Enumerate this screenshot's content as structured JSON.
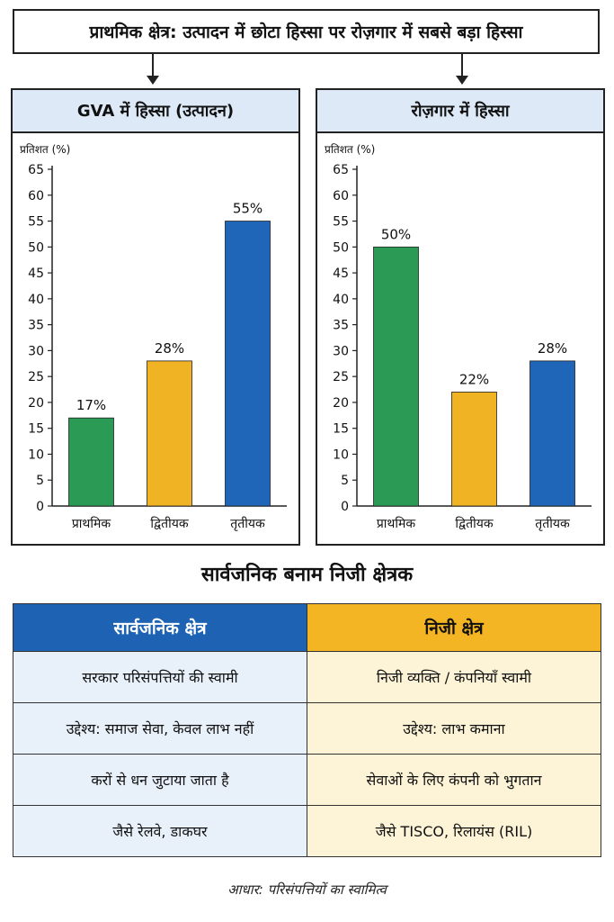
{
  "title": "प्राथमिक क्षेत्र: उत्पादन में छोटा हिस्सा पर रोज़गार में सबसे बड़ा हिस्सा",
  "colors": {
    "primary": "#2a9a55",
    "secondary": "#f0b323",
    "tertiary": "#1f66b8"
  },
  "chart_data": [
    {
      "type": "bar",
      "title": "GVA में हिस्सा (उत्पादन)",
      "ylabel": "प्रतिशत (%)",
      "xlabel": "",
      "categories": [
        "प्राथमिक",
        "द्वितीयक",
        "तृतीयक"
      ],
      "values": [
        17,
        28,
        55
      ],
      "data_labels": [
        "17%",
        "28%",
        "55%"
      ],
      "ylim": [
        0,
        65
      ],
      "yticks": [
        0,
        5,
        10,
        15,
        20,
        25,
        30,
        35,
        40,
        45,
        50,
        55,
        60,
        65
      ],
      "grid": false,
      "legend": "none"
    },
    {
      "type": "bar",
      "title": "रोज़गार में हिस्सा",
      "ylabel": "प्रतिशत (%)",
      "xlabel": "",
      "categories": [
        "प्राथमिक",
        "द्वितीयक",
        "तृतीयक"
      ],
      "values": [
        50,
        22,
        28
      ],
      "data_labels": [
        "50%",
        "22%",
        "28%"
      ],
      "ylim": [
        0,
        65
      ],
      "yticks": [
        0,
        5,
        10,
        15,
        20,
        25,
        30,
        35,
        40,
        45,
        50,
        55,
        60,
        65
      ],
      "grid": false,
      "legend": "none"
    }
  ],
  "comparison": {
    "title": "सार्वजनिक बनाम निजी क्षेत्रक",
    "headers": [
      "सार्वजनिक क्षेत्र",
      "निजी क्षेत्र"
    ],
    "rows": [
      [
        "सरकार परिसंपत्तियों की स्वामी",
        "निजी व्यक्ति / कंपनियाँ स्वामी"
      ],
      [
        "उद्देश्य: समाज सेवा, केवल लाभ नहीं",
        "उद्देश्य: लाभ कमाना"
      ],
      [
        "करों से धन जुटाया जाता है",
        "सेवाओं के लिए कंपनी को भुगतान"
      ],
      [
        "जैसे रेलवे, डाकघर",
        "जैसे TISCO, रिलायंस (RIL)"
      ]
    ]
  },
  "footnote": "आधार: परिसंपत्तियों का स्वामित्व"
}
